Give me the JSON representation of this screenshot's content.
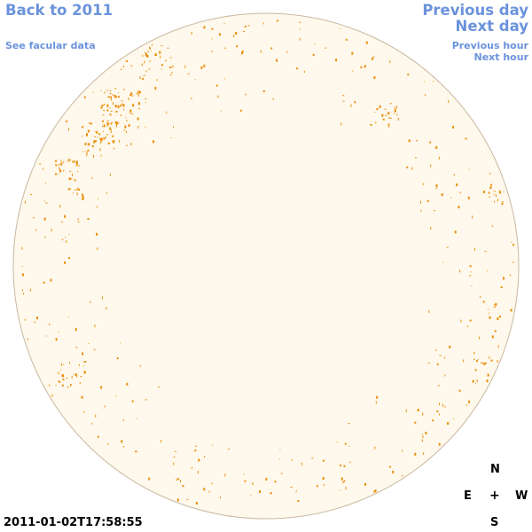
{
  "nav": {
    "back_label": "Back to 2011",
    "facular_label": "See facular data",
    "prev_day_label": "Previous day",
    "next_day_label": "Next day",
    "prev_hour_label": "Previous hour",
    "next_hour_label": "Next hour"
  },
  "compass": {
    "north": "N",
    "east": "E",
    "center": "+",
    "west": "W",
    "south": "S"
  },
  "timestamp": "2011-01-02T17:58:55",
  "colors": {
    "link": "#6b93dc",
    "disk_fill": "#fff8ec",
    "disk_edge": "#c9b8a0",
    "facula": "#e8900c"
  }
}
